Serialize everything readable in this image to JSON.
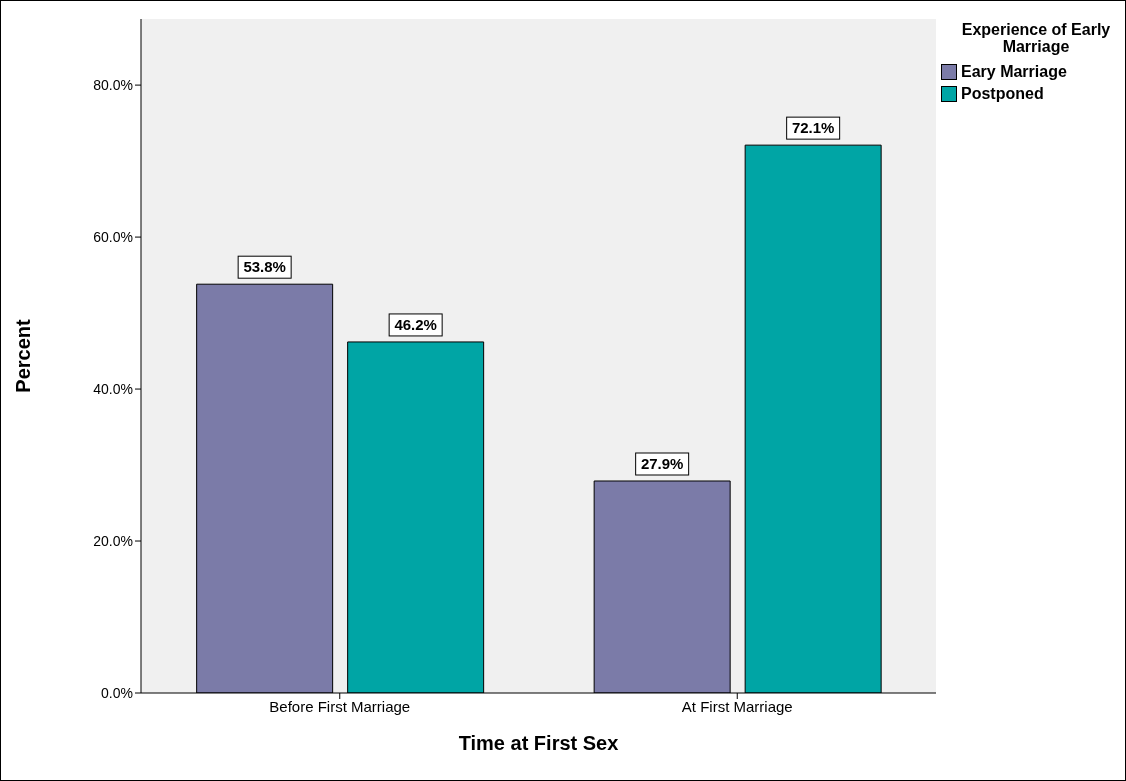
{
  "chart_data": {
    "type": "bar",
    "xlabel": "Time at First Sex",
    "ylabel": "Percent",
    "legend_title": "Experience of Early Marriage",
    "categories": [
      "Before First Marriage",
      "At First Marriage"
    ],
    "series": [
      {
        "name": "Eary Marriage",
        "color": "#7b7ba8",
        "values": [
          53.8,
          27.9
        ],
        "value_labels": [
          "53.8%",
          "27.9%"
        ]
      },
      {
        "name": "Postponed",
        "color": "#00a5a5",
        "values": [
          46.2,
          72.1
        ],
        "value_labels": [
          "46.2%",
          "72.1%"
        ]
      }
    ],
    "ylim": [
      0,
      88.7
    ],
    "yticks": [
      {
        "value": 0,
        "label": "0.0%"
      },
      {
        "value": 20,
        "label": "20.0%"
      },
      {
        "value": 40,
        "label": "40.0%"
      },
      {
        "value": 60,
        "label": "60.0%"
      },
      {
        "value": 80,
        "label": "80.0%"
      }
    ],
    "grid": false,
    "legend": "top right"
  }
}
